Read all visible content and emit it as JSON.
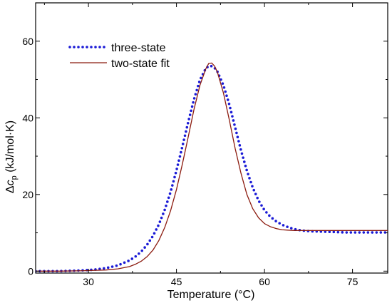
{
  "chart_data": {
    "type": "line",
    "xlabel": "Temperature (°C)",
    "ylabel_parts": {
      "prefix": "Δc",
      "sub": "p",
      "suffix": " (kJ/mol·K)"
    },
    "xlim": [
      21,
      81
    ],
    "ylim": [
      -0.5,
      70
    ],
    "x_ticks": [
      30,
      45,
      60,
      75
    ],
    "y_ticks": [
      0,
      20,
      40,
      60
    ],
    "legend_position": "top-left",
    "series": [
      {
        "name": "three-state",
        "style": "dotted",
        "color": "#1a1ad6",
        "x": [
          21,
          23,
          25,
          27,
          29,
          31,
          33,
          35,
          37,
          38,
          39,
          40,
          41,
          42,
          43,
          44,
          45,
          46,
          47,
          48,
          49,
          50,
          50.5,
          51,
          51.5,
          52,
          53,
          54,
          55,
          56,
          57,
          58,
          59,
          60,
          61,
          62,
          63,
          64,
          65,
          66,
          67,
          68,
          70,
          72,
          74,
          76,
          78,
          80,
          81
        ],
        "y": [
          0,
          0,
          0,
          0.1,
          0.2,
          0.4,
          0.8,
          1.5,
          2.8,
          3.8,
          5.1,
          6.9,
          9.2,
          12.2,
          16.0,
          20.7,
          26.3,
          32.5,
          38.9,
          44.9,
          49.9,
          52.9,
          53.5,
          53.5,
          53.0,
          52.0,
          48.5,
          43.5,
          37.5,
          31.5,
          26.2,
          21.8,
          18.4,
          15.9,
          14.2,
          13.0,
          12.1,
          11.5,
          11.0,
          10.7,
          10.5,
          10.4,
          10.3,
          10.2,
          10.1,
          10.1,
          10.1,
          10.1,
          10.1
        ]
      },
      {
        "name": "two-state fit",
        "style": "solid",
        "color": "#8b1a0e",
        "x": [
          21,
          25,
          29,
          33,
          35,
          37,
          38,
          39,
          40,
          41,
          42,
          43,
          44,
          45,
          46,
          47,
          48,
          49,
          50,
          50.5,
          51,
          51.5,
          52,
          53,
          54,
          55,
          56,
          57,
          58,
          59,
          60,
          61,
          62,
          63,
          64,
          65,
          66,
          67,
          68,
          70,
          72,
          75,
          78,
          81
        ],
        "y": [
          0,
          0,
          0.1,
          0.3,
          0.6,
          1.2,
          1.8,
          2.6,
          3.8,
          5.5,
          8.0,
          11.4,
          15.8,
          21.3,
          27.9,
          35.0,
          42.3,
          48.5,
          52.8,
          54.2,
          54.3,
          53.5,
          51.8,
          46.5,
          39.5,
          32.0,
          25.5,
          20.0,
          16.3,
          13.9,
          12.4,
          11.6,
          11.1,
          10.8,
          10.7,
          10.6,
          10.6,
          10.6,
          10.6,
          10.6,
          10.6,
          10.6,
          10.6,
          10.6
        ]
      }
    ]
  }
}
